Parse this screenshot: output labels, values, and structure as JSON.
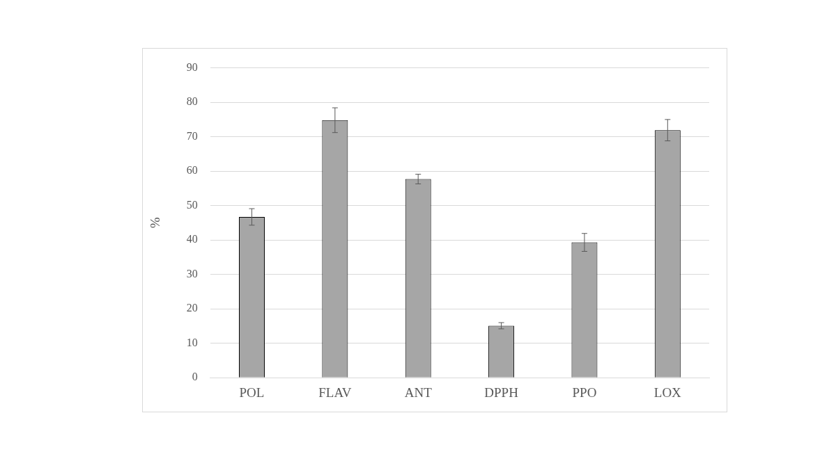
{
  "chart_data": {
    "type": "bar",
    "categories": [
      "POL",
      "FLAV",
      "ANT",
      "DPPH",
      "PPO",
      "LOX"
    ],
    "values": [
      46.7,
      74.8,
      57.7,
      15.1,
      39.3,
      71.9
    ],
    "errors": [
      2.4,
      3.6,
      1.4,
      0.9,
      2.6,
      3.1
    ],
    "y_label": "%",
    "color": "#a6a6a6",
    "ylim": [
      0,
      90
    ],
    "yticks": [
      0,
      10,
      20,
      30,
      40,
      50,
      60,
      70,
      80,
      90
    ],
    "grid": true
  }
}
